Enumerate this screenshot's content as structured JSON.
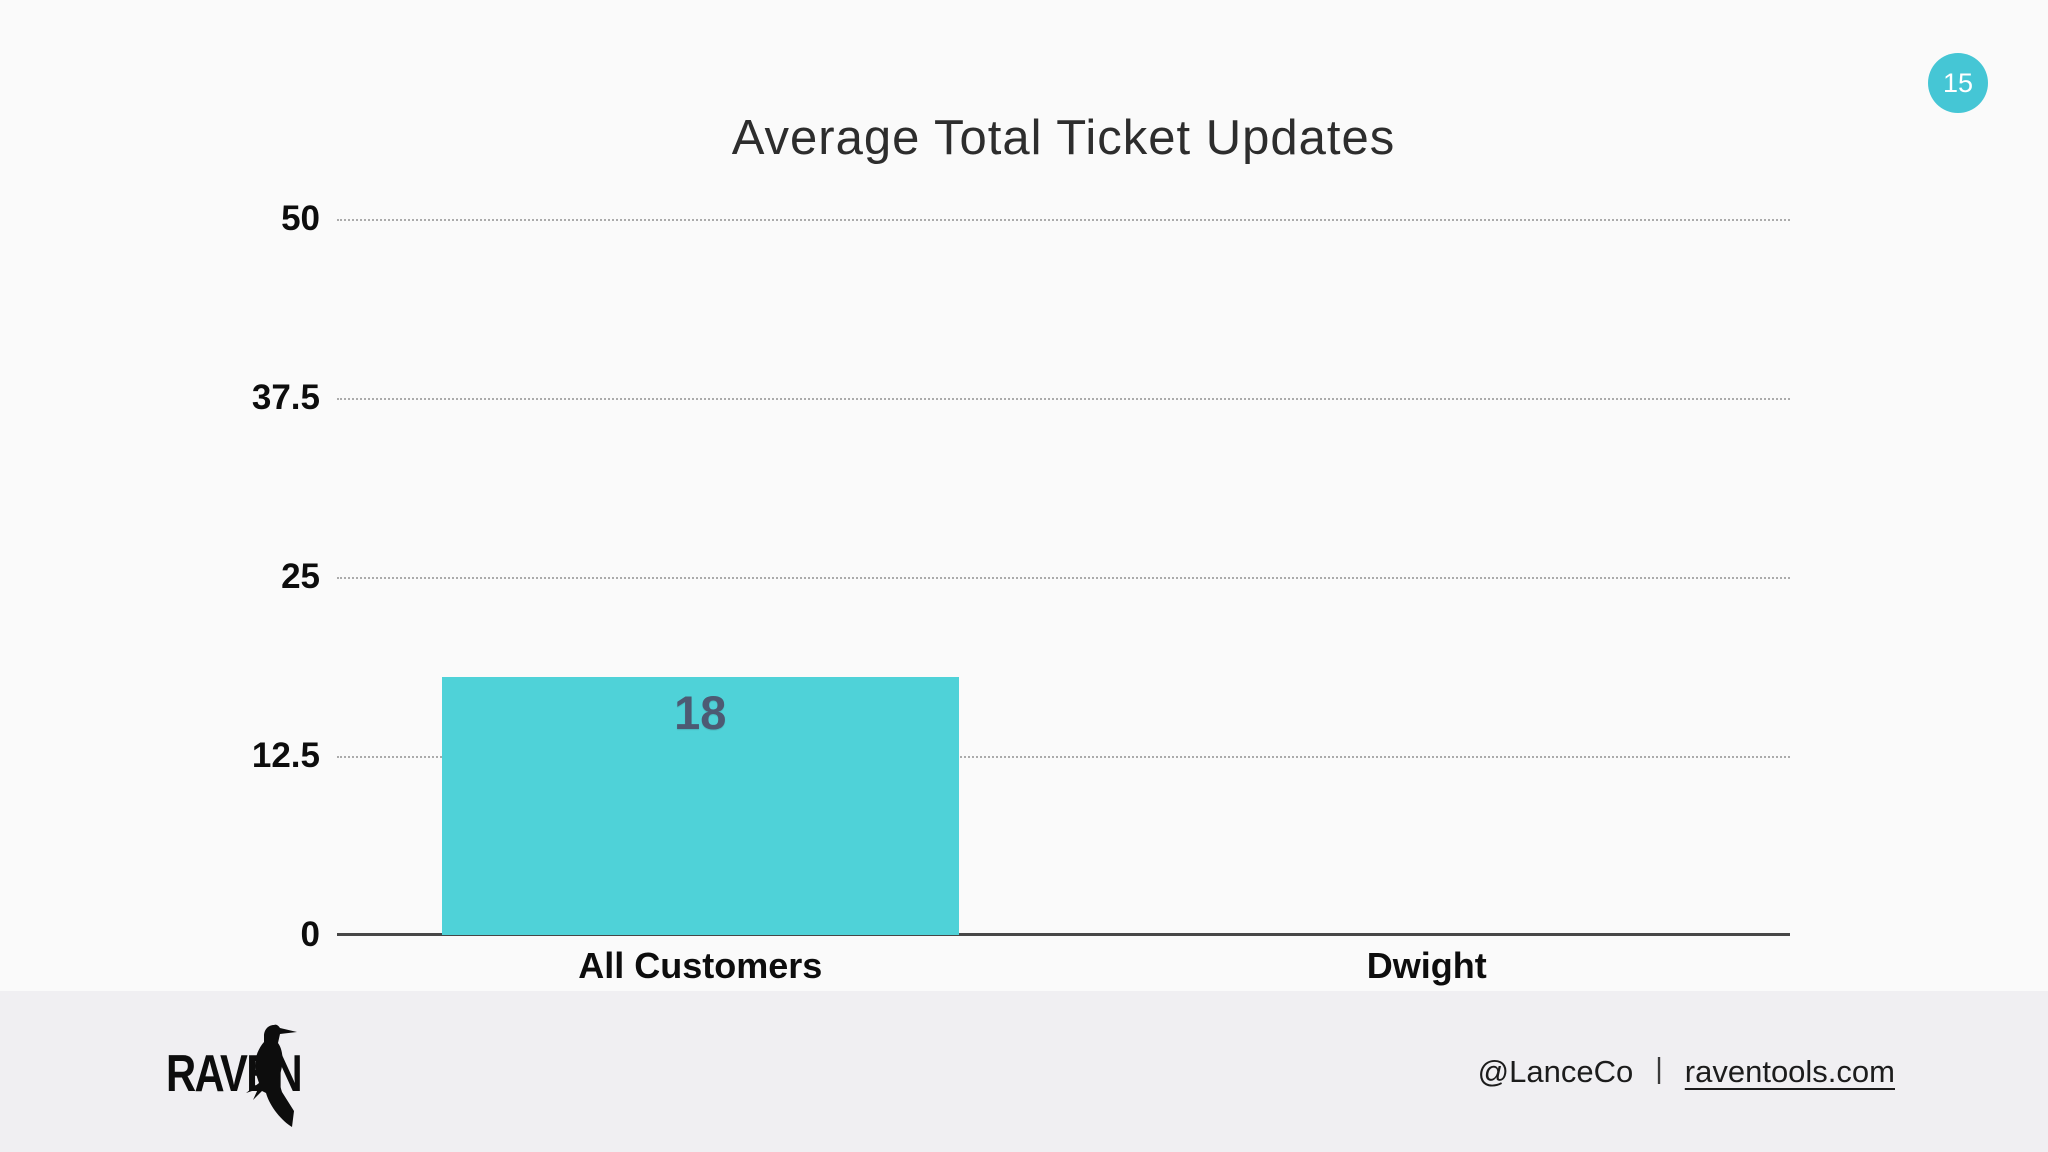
{
  "page": {
    "background": "#fafafa",
    "badge": {
      "number": "15",
      "color": "#45c6d5",
      "text_color": "#ffffff"
    }
  },
  "chart_data": {
    "type": "bar",
    "title": "Average Total Ticket Updates",
    "categories": [
      "All Customers",
      "Dwight"
    ],
    "values": [
      18,
      0
    ],
    "bar_labels": [
      "18",
      ""
    ],
    "xlabel": "",
    "ylabel": "",
    "ylim": [
      0,
      50
    ],
    "yticks": [
      50,
      37.5,
      25,
      12.5,
      0
    ],
    "grid": "horizontal-dotted",
    "legend_position": "none",
    "bar_color": "#4fd2d8",
    "value_label_color": "#4d5a73"
  },
  "footer": {
    "logo_text": "RAVEN",
    "handle": "@LanceCo",
    "divider": "|",
    "link": "raventools.com",
    "background": "#f0eff2"
  }
}
